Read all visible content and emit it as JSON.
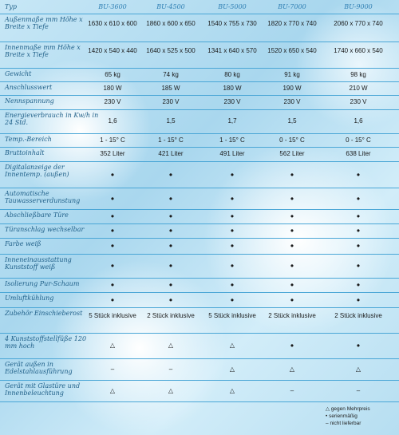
{
  "header": {
    "type_label": "Typ",
    "models": [
      "BU-3600",
      "BU-4500",
      "BU-5000",
      "BU-7000",
      "BU-9000"
    ]
  },
  "rows": [
    {
      "label": "Außenmaße mm Höhe x Breite x Tiefe",
      "values": [
        "1630 x 610 x 600",
        "1860 x 600 x 650",
        "1540 x 755 x 730",
        "1820 x 770 x 740",
        "2060 x 770 x 740"
      ]
    },
    {
      "label": "Innenmaße mm Höhe x Breite x Tiefe",
      "values": [
        "1420 x 540 x 440",
        "1640 x 525 x 500",
        "1341 x 640 x 570",
        "1520 x 650 x 540",
        "1740 x 660 x 540"
      ]
    },
    {
      "label": "Gewicht",
      "values": [
        "65 kg",
        "74 kg",
        "80 kg",
        "91 kg",
        "98 kg"
      ]
    },
    {
      "label": "Anschlusswert",
      "values": [
        "180 W",
        "185 W",
        "180 W",
        "190 W",
        "210 W"
      ]
    },
    {
      "label": "Nennspannung",
      "values": [
        "230 V",
        "230 V",
        "230 V",
        "230 V",
        "230 V"
      ]
    },
    {
      "label": "Energieverbrauch in Kw/h in 24 Std.",
      "values": [
        "1,6",
        "1,5",
        "1,7",
        "1,5",
        "1,6"
      ]
    },
    {
      "label": "Temp.-Bereich",
      "values": [
        "1 - 15° C",
        "1 - 15° C",
        "1 - 15° C",
        "0 - 15° C",
        "0 - 15° C"
      ]
    },
    {
      "label": "Bruttoinhalt",
      "values": [
        "352 Liter",
        "421 Liter",
        "491 Liter",
        "562 Liter",
        "638 Liter"
      ]
    },
    {
      "label": "Digitalanzeige der Innentemp. (außen)",
      "values": [
        "•",
        "•",
        "•",
        "•",
        "•"
      ]
    },
    {
      "label": "Automatische Tauwasserverdunstung",
      "values": [
        "•",
        "•",
        "•",
        "•",
        "•"
      ]
    },
    {
      "label": "Abschließbare Türe",
      "values": [
        "•",
        "•",
        "•",
        "•",
        "•"
      ]
    },
    {
      "label": "Türanschlag wechselbar",
      "values": [
        "•",
        "•",
        "•",
        "•",
        "•"
      ]
    },
    {
      "label": "Farbe weiß",
      "values": [
        "•",
        "•",
        "•",
        "•",
        "•"
      ]
    },
    {
      "label": "Inneneinausstattung Kunststoff weiß",
      "values": [
        "•",
        "•",
        "•",
        "•",
        "•"
      ]
    },
    {
      "label": "Isolierung Pur-Schaum",
      "values": [
        "•",
        "•",
        "•",
        "•",
        "•"
      ]
    },
    {
      "label": "Umluftkühlung",
      "values": [
        "•",
        "•",
        "•",
        "•",
        "•"
      ]
    },
    {
      "label": "Zubehör Einschieberost",
      "values": [
        "5 Stück inklusive",
        "2 Stück inklusive",
        "5 Stück inklusive",
        "2 Stück inklusive",
        "2 Stück inklusive"
      ]
    },
    {
      "label": "4 Kunststoffstellfüße 120 mm hoch",
      "values": [
        "△",
        "△",
        "△",
        "•",
        "•"
      ]
    },
    {
      "label": "Gerät außen in Edelstahlausführung",
      "values": [
        "–",
        "–",
        "△",
        "△",
        "△"
      ]
    },
    {
      "label": "Gerät mit Glastüre und Innenbeleuchtung",
      "values": [
        "△",
        "△",
        "△",
        "–",
        "–"
      ]
    }
  ],
  "legend": [
    {
      "symbol": "△",
      "text": "gegen Mehrpreis"
    },
    {
      "symbol": "•",
      "text": "serienmäßig"
    },
    {
      "symbol": "–",
      "text": "nicht lieferbar"
    }
  ]
}
